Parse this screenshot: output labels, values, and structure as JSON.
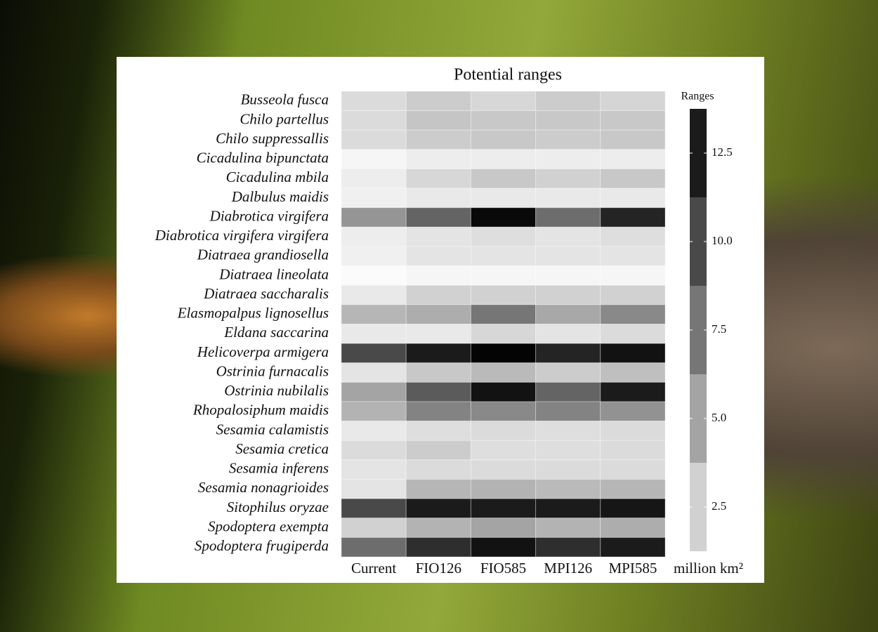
{
  "chart_data": {
    "type": "heatmap",
    "title": "Potential ranges",
    "rows": [
      "Busseola fusca",
      "Chilo partellus",
      "Chilo suppressallis",
      "Cicadulina bipunctata",
      "Cicadulina mbila",
      "Dalbulus maidis",
      "Diabrotica virgifera",
      "Diabrotica virgifera virgifera",
      "Diatraea grandiosella",
      "Diatraea lineolata",
      "Diatraea saccharalis",
      "Elasmopalpus lignosellus",
      "Eldana saccarina",
      "Helicoverpa armigera",
      "Ostrinia furnacalis",
      "Ostrinia nubilalis",
      "Rhopalosiphum maidis",
      "Sesamia calamistis",
      "Sesamia cretica",
      "Sesamia inferens",
      "Sesamia nonagrioides",
      "Sitophilus oryzae",
      "Spodoptera exempta",
      "Spodoptera frugiperda"
    ],
    "columns": [
      "Current",
      "FIO126",
      "FIO585",
      "MPI126",
      "MPI585"
    ],
    "values": [
      [
        2.0,
        2.8,
        2.2,
        2.8,
        2.3
      ],
      [
        2.0,
        3.2,
        3.0,
        3.0,
        3.0
      ],
      [
        2.0,
        2.8,
        3.0,
        2.8,
        3.0
      ],
      [
        0.5,
        1.0,
        1.0,
        1.0,
        1.0
      ],
      [
        1.0,
        2.2,
        3.0,
        2.5,
        3.0
      ],
      [
        0.8,
        1.2,
        1.2,
        1.2,
        1.2
      ],
      [
        5.8,
        8.5,
        13.5,
        8.0,
        12.0
      ],
      [
        1.0,
        1.5,
        1.8,
        1.5,
        1.8
      ],
      [
        0.8,
        1.5,
        1.5,
        1.5,
        1.5
      ],
      [
        0.2,
        0.5,
        0.5,
        0.5,
        0.5
      ],
      [
        1.2,
        2.5,
        2.5,
        2.5,
        2.5
      ],
      [
        4.0,
        4.5,
        7.5,
        4.8,
        6.5
      ],
      [
        1.2,
        1.2,
        2.2,
        1.5,
        2.0
      ],
      [
        10.0,
        12.5,
        13.8,
        12.0,
        13.0
      ],
      [
        1.5,
        3.0,
        3.8,
        2.8,
        3.5
      ],
      [
        5.0,
        9.0,
        13.0,
        8.5,
        12.5
      ],
      [
        4.2,
        6.8,
        6.5,
        6.8,
        6.0
      ],
      [
        1.2,
        1.8,
        2.0,
        1.8,
        2.0
      ],
      [
        2.0,
        2.8,
        1.8,
        1.8,
        2.0
      ],
      [
        1.5,
        2.0,
        2.0,
        2.0,
        2.0
      ],
      [
        1.5,
        4.0,
        4.2,
        3.8,
        4.0
      ],
      [
        10.0,
        12.5,
        12.5,
        12.5,
        12.8
      ],
      [
        2.5,
        4.2,
        5.0,
        4.2,
        4.5
      ],
      [
        8.0,
        11.5,
        13.0,
        11.5,
        12.5
      ]
    ],
    "color_scale": {
      "lim": [
        0,
        14
      ],
      "colors": [
        "#ffffff",
        "#000000"
      ]
    },
    "colorbar": {
      "title": "Ranges",
      "unit": "million km²",
      "lim": [
        1.25,
        13.75
      ],
      "ticks": [
        2.5,
        {
          "value": 5.0,
          "label": "5.0"
        },
        7.5,
        {
          "value": 10.0,
          "label": "10.0"
        },
        12.5
      ]
    }
  }
}
